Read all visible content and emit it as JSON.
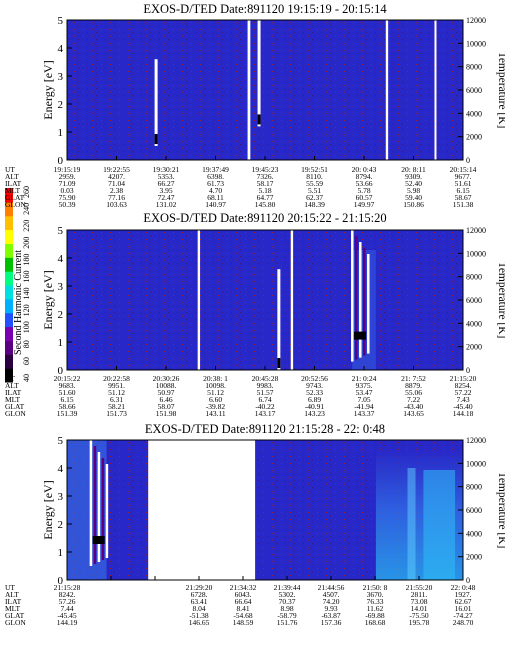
{
  "colors": {
    "background": "#2828c8",
    "speckle": "#b02020",
    "colorbar": [
      "#000000",
      "#2a0040",
      "#5a0080",
      "#7a00b0",
      "#2050ff",
      "#00b0ff",
      "#00e0e0",
      "#00ff80",
      "#00c000",
      "#80ff00",
      "#ffff00",
      "#ffc000",
      "#ff8000",
      "#ff0000"
    ]
  },
  "colorbar": {
    "label": "Second Harmonic Current",
    "ticks": [
      "40",
      "60",
      "80",
      "100",
      "120",
      "140",
      "160",
      "180",
      "200",
      "220",
      "240",
      "260"
    ]
  },
  "chart_data": [
    {
      "type": "heatmap",
      "title": "EXOS-D/TED   Date:891120   19:15:19 - 20:15:14",
      "ylabel": "Energy [eV]",
      "y2label": "Temperature [K]",
      "ylim": [
        0,
        5
      ],
      "y_ticks": [
        "0",
        "1",
        "2",
        "3",
        "4",
        "5"
      ],
      "y2lim": [
        0,
        12000
      ],
      "y2_ticks": [
        "0",
        "2000",
        "4000",
        "6000",
        "8000",
        "10000",
        "12000"
      ],
      "row_labels": [
        "UT",
        "ALT",
        "ILAT",
        "MLT",
        "GLAT",
        "GLON"
      ],
      "columns": [
        [
          "19:15:19",
          "2959.",
          "71.09",
          "0.03",
          "75.90",
          "50.39"
        ],
        [
          "19:22:55",
          "4207.",
          "71.04",
          "2.38",
          "77.16",
          "103.63"
        ],
        [
          "19:30:21",
          "5353.",
          "66.27",
          "3.95",
          "72.47",
          "131.02"
        ],
        [
          "19:37:49",
          "6398.",
          "61.73",
          "4.70",
          "68.11",
          "140.97"
        ],
        [
          "19:45:23",
          "7326.",
          "58.17",
          "5.18",
          "64.77",
          "145.80"
        ],
        [
          "19:52:51",
          "8110.",
          "55.59",
          "5.51",
          "62.37",
          "148.39"
        ],
        [
          "20: 0:43",
          "8794.",
          "53.66",
          "5.78",
          "60.57",
          "149.97"
        ],
        [
          "20: 8:11",
          "9309.",
          "52.40",
          "5.98",
          "59.40",
          "150.86"
        ],
        [
          "20:15:14",
          "9677.",
          "51.61",
          "6.15",
          "58.67",
          "151.38"
        ]
      ],
      "data_gaps": [
        [
          0.456,
          0.463
        ],
        [
          0.805,
          0.811
        ],
        [
          0.928,
          0.933
        ]
      ],
      "features": [
        {
          "x": 0.225,
          "y": [
            0.5,
            3.6
          ],
          "kind": "white spike"
        },
        {
          "x": 0.485,
          "y": [
            1.2,
            5.0
          ],
          "kind": "white spike"
        }
      ]
    },
    {
      "type": "heatmap",
      "title": "EXOS-D/TED   Date:891120   20:15:22 - 21:15:20",
      "ylabel": "Energy [eV]",
      "y2label": "Temperature [K]",
      "ylim": [
        0,
        5
      ],
      "y_ticks": [
        "0",
        "1",
        "2",
        "3",
        "4",
        "5"
      ],
      "y2lim": [
        0,
        12000
      ],
      "y2_ticks": [
        "0",
        "2000",
        "4000",
        "6000",
        "8000",
        "10000",
        "12000"
      ],
      "row_labels": [
        "UT",
        "ALT",
        "ILAT",
        "MLT",
        "GLAT",
        "GLON"
      ],
      "columns": [
        [
          "20:15:22",
          "9683.",
          "51.60",
          "6.15",
          "58.66",
          "151.39"
        ],
        [
          "20:22:58",
          "9951.",
          "51.12",
          "6.31",
          "58.21",
          "151.73"
        ],
        [
          "20:30:26",
          "10088.",
          "50.97",
          "6.46",
          "58.07",
          "151.98"
        ],
        [
          "20:38: 1",
          "10098.",
          "51.12",
          "6.60",
          "-39.82",
          "143.11"
        ],
        [
          "20:45:28",
          "9983.",
          "51.57",
          "6.74",
          "-40.22",
          "143.17"
        ],
        [
          "20:52:56",
          "9743.",
          "52.33",
          "6.89",
          "-40.91",
          "143.23"
        ],
        [
          "21: 0:24",
          "9375.",
          "53.47",
          "7.05",
          "-41.94",
          "143.37"
        ],
        [
          "21: 7:52",
          "8879.",
          "55.06",
          "7.22",
          "-43.40",
          "143.65"
        ],
        [
          "21:15:20",
          "8254.",
          "57.22",
          "7.43",
          "-45.40",
          "144.18"
        ]
      ],
      "data_gaps": [
        [
          0.33,
          0.336
        ],
        [
          0.565,
          0.571
        ]
      ],
      "features": [
        {
          "x": 0.535,
          "y": [
            0,
            3.6
          ],
          "kind": "white spike"
        },
        {
          "x": 0.74,
          "y": [
            0.3,
            5.0
          ],
          "kind": "white/purple burst"
        }
      ]
    },
    {
      "type": "heatmap",
      "title": "EXOS-D/TED   Date:891120   21:15:28 - 22: 0:48",
      "ylabel": "Energy [eV]",
      "y2label": "Temperature [K]",
      "ylim": [
        0,
        5
      ],
      "y_ticks": [
        "0",
        "1",
        "2",
        "3",
        "4",
        "5"
      ],
      "y2lim": [
        0,
        12000
      ],
      "y2_ticks": [
        "0",
        "2000",
        "4000",
        "6000",
        "8000",
        "10000",
        "12000"
      ],
      "row_labels": [
        "UT",
        "ALT",
        "ILAT",
        "MLT",
        "GLAT",
        "GLON"
      ],
      "columns": [
        [
          "21:15:28",
          "8242.",
          "57.26",
          "7.44",
          "-45.45",
          "144.19"
        ],
        [
          "",
          "",
          "",
          "",
          "",
          ""
        ],
        [
          "",
          "",
          "",
          "",
          "",
          ""
        ],
        [
          "21:29:20",
          "6728.",
          "63.41",
          "8.04",
          "-51.38",
          "146.65"
        ],
        [
          "21:34:32",
          "6043.",
          "66.64",
          "8.41",
          "-54.68",
          "148.59"
        ],
        [
          "21:39:44",
          "5302.",
          "70.37",
          "8.98",
          "-58.79",
          "151.76"
        ],
        [
          "21:44:56",
          "4507.",
          "74.20",
          "9.93",
          "-63.87",
          "157.36"
        ],
        [
          "21:50: 8",
          "3670.",
          "76.33",
          "11.62",
          "-69.88",
          "168.68"
        ],
        [
          "21:55:20",
          "2811.",
          "73.08",
          "14.01",
          "-75.50",
          "195.78"
        ],
        [
          "22: 0:48",
          "1927.",
          "62.67",
          "16.01",
          "-74.27",
          "248.70"
        ]
      ],
      "data_gaps": [
        [
          0.205,
          0.475
        ]
      ],
      "features": [
        {
          "x": 0.08,
          "y": [
            0.5,
            5.0
          ],
          "kind": "white/purple burst"
        },
        {
          "x": 0.87,
          "y": [
            0,
            4.0
          ],
          "kind": "cyan enhancement"
        }
      ]
    }
  ]
}
